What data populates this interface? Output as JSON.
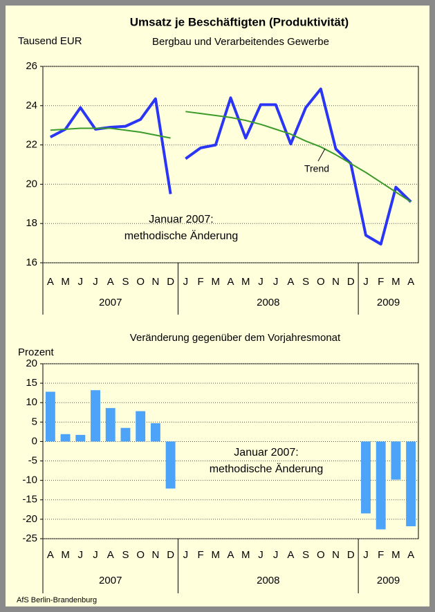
{
  "chart_data": [
    {
      "type": "line",
      "title": "Umsatz je Beschäftigten (Produktivität)",
      "subtitle": "Bergbau und Verarbeitendes Gewerbe",
      "y_label": "Tausend EUR",
      "categories": [
        "A",
        "M",
        "J",
        "J",
        "A",
        "S",
        "O",
        "N",
        "D",
        "J",
        "F",
        "M",
        "A",
        "M",
        "J",
        "J",
        "A",
        "S",
        "O",
        "N",
        "D",
        "J",
        "F",
        "M",
        "A"
      ],
      "group_labels": [
        "2007",
        "2008",
        "2009"
      ],
      "series": [
        {
          "color": "#2b35f5",
          "values": [
            22.4,
            22.8,
            23.9,
            22.8,
            22.9,
            22.95,
            23.3,
            24.35,
            19.5,
            null,
            null,
            null,
            null,
            null,
            null,
            null,
            null,
            null,
            null,
            null,
            null,
            null,
            null,
            null,
            null
          ]
        },
        {
          "color": "#2b35f5",
          "values": [
            null,
            null,
            null,
            null,
            null,
            null,
            null,
            null,
            null,
            21.3,
            21.85,
            22.0,
            24.4,
            22.35,
            24.05,
            24.05,
            22.05,
            23.9,
            24.85,
            21.8,
            21.05,
            17.4,
            16.95,
            19.85,
            19.1
          ]
        },
        {
          "color": "#3a9a2a",
          "values": [
            22.75,
            22.8,
            22.85,
            22.85,
            22.85,
            22.75,
            22.65,
            22.5,
            22.35,
            null,
            null,
            null,
            null,
            null,
            null,
            null,
            null,
            null,
            null,
            null,
            null,
            null,
            null,
            null,
            null
          ]
        },
        {
          "color": "#3a9a2a",
          "values": [
            null,
            null,
            null,
            null,
            null,
            null,
            null,
            null,
            null,
            23.7,
            23.6,
            23.5,
            23.4,
            23.25,
            23.05,
            22.8,
            22.55,
            22.2,
            21.9,
            21.5,
            21.05,
            20.6,
            20.1,
            19.6,
            19.1
          ]
        }
      ],
      "trend_label": "Trend",
      "annotations": [
        "Januar 2007:",
        "methodische  Änderung"
      ],
      "ylim": [
        16,
        26
      ],
      "yticks": [
        16,
        18,
        20,
        22,
        24,
        26
      ],
      "grid": true
    },
    {
      "type": "bar",
      "title": "Veränderung gegenüber dem Vorjahresmonat",
      "y_label": "Prozent",
      "categories": [
        "A",
        "M",
        "J",
        "J",
        "A",
        "S",
        "O",
        "N",
        "D",
        "J",
        "F",
        "M",
        "A",
        "M",
        "J",
        "J",
        "A",
        "S",
        "O",
        "N",
        "D",
        "J",
        "F",
        "M",
        "A"
      ],
      "group_labels": [
        "2007",
        "2008",
        "2009"
      ],
      "color": "#4da3f7",
      "values": [
        12.8,
        1.9,
        1.7,
        13.2,
        8.6,
        3.5,
        7.8,
        4.7,
        -12.1,
        null,
        null,
        null,
        null,
        null,
        null,
        null,
        null,
        null,
        null,
        null,
        null,
        -18.5,
        -22.6,
        -9.8,
        -21.8
      ],
      "annotations": [
        "Januar 2007:",
        "methodische  Änderung"
      ],
      "ylim": [
        -25,
        20
      ],
      "yticks": [
        -25,
        -20,
        -15,
        -10,
        -5,
        0,
        5,
        10,
        15,
        20
      ],
      "grid": true
    }
  ],
  "source": "AfS Berlin-Brandenburg"
}
